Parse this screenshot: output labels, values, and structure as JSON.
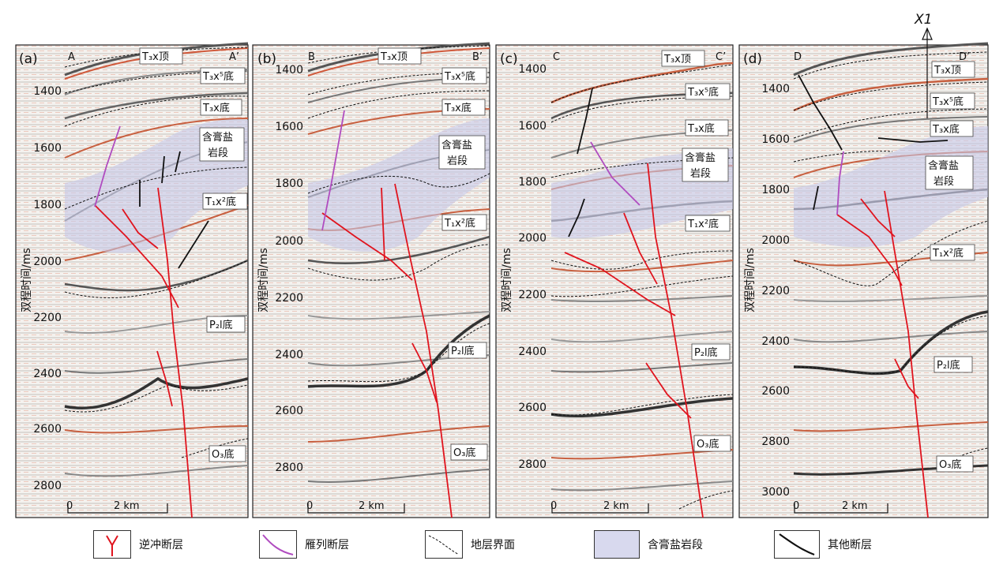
{
  "y_axis_label": "双程时间/ms",
  "scale_text": "2 km",
  "scale_zero": "0",
  "panels": [
    {
      "id": "(a)",
      "left_end": "A",
      "right_end": "A’",
      "ticks": [
        1400,
        1600,
        1800,
        2000,
        2200,
        2400,
        2600,
        2800
      ],
      "labels": [
        "T₃x顶",
        "T₃x⁵底",
        "T₃x底",
        "含膏盐",
        "岩段",
        "T₁x²底",
        "P₂l底",
        "O₃底"
      ]
    },
    {
      "id": "(b)",
      "left_end": "B",
      "right_end": "B’",
      "ticks": [
        1400,
        1600,
        1800,
        2000,
        2200,
        2400,
        2600,
        2800
      ],
      "labels": [
        "T₃x顶",
        "T₃x⁵底",
        "T₃x底",
        "含膏盐",
        "岩段",
        "T₁x²底",
        "P₂l底",
        "O₃底"
      ]
    },
    {
      "id": "(c)",
      "left_end": "C",
      "right_end": "C’",
      "ticks": [
        1400,
        1600,
        1800,
        2000,
        2200,
        2400,
        2600,
        2800
      ],
      "labels": [
        "T₃x顶",
        "T₃x⁵底",
        "T₃x底",
        "含膏盐",
        "岩段",
        "T₁x²底",
        "P₂l底",
        "O₃底"
      ]
    },
    {
      "id": "(d)",
      "left_end": "D",
      "right_end": "D’",
      "well": "X1",
      "ticks": [
        1400,
        1600,
        1800,
        2000,
        2200,
        2400,
        2600,
        2800,
        3000
      ],
      "labels": [
        "T₃x顶",
        "T₃x⁵底",
        "T₃x底",
        "含膏盐",
        "岩段",
        "T₁x²底",
        "P₂l底",
        "O₃底"
      ]
    }
  ],
  "legend": [
    {
      "label": "逆冲断层",
      "color": "#e0141e"
    },
    {
      "label": "雁列断层",
      "color": "#b04cc0"
    },
    {
      "label": "地层界面",
      "color": "#111111"
    },
    {
      "label": "含膏盐岩段",
      "color": "#d8d9ee"
    },
    {
      "label": "其他断层",
      "color": "#111111"
    }
  ]
}
